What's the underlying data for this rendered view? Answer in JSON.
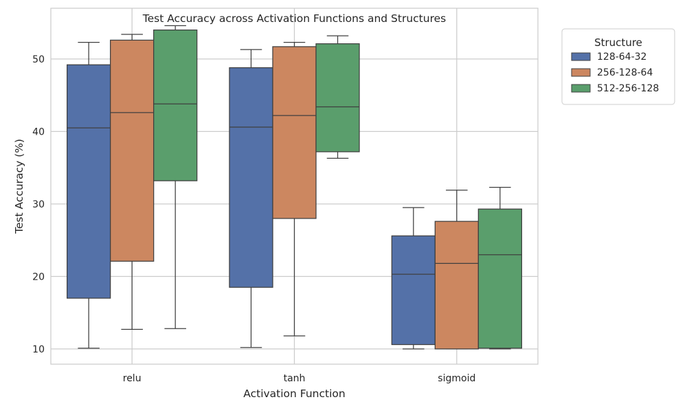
{
  "chart_data": {
    "type": "box",
    "title": "Test Accuracy across Activation Functions and Structures",
    "xlabel": "Activation Function",
    "ylabel": "Test Accuracy (%)",
    "categories": [
      "relu",
      "tanh",
      "sigmoid"
    ],
    "ylim": [
      7.9,
      57
    ],
    "yticks": [
      10,
      20,
      30,
      40,
      50
    ],
    "grid": true,
    "legend": {
      "title": "Structure",
      "placement": "outside-top-right"
    },
    "series": [
      {
        "name": "128-64-32",
        "color": "#5471a8",
        "boxes": [
          {
            "category": "relu",
            "min": 10.1,
            "q1": 17.0,
            "median": 40.5,
            "q3": 49.2,
            "max": 52.3
          },
          {
            "category": "tanh",
            "min": 10.2,
            "q1": 18.5,
            "median": 40.6,
            "q3": 48.8,
            "max": 51.3
          },
          {
            "category": "sigmoid",
            "min": 10.0,
            "q1": 10.6,
            "median": 20.3,
            "q3": 25.6,
            "max": 29.5
          }
        ]
      },
      {
        "name": "256-128-64",
        "color": "#cc8760",
        "boxes": [
          {
            "category": "relu",
            "min": 12.7,
            "q1": 22.1,
            "median": 42.6,
            "q3": 52.6,
            "max": 53.4
          },
          {
            "category": "tanh",
            "min": 11.8,
            "q1": 28.0,
            "median": 42.2,
            "q3": 51.7,
            "max": 52.3
          },
          {
            "category": "sigmoid",
            "min": 10.0,
            "q1": 10.0,
            "median": 21.8,
            "q3": 27.6,
            "max": 31.9
          }
        ]
      },
      {
        "name": "512-256-128",
        "color": "#5a9e6c",
        "boxes": [
          {
            "category": "relu",
            "min": 12.8,
            "q1": 33.2,
            "median": 43.8,
            "q3": 54.0,
            "max": 54.6
          },
          {
            "category": "tanh",
            "min": 36.3,
            "q1": 37.2,
            "median": 43.4,
            "q3": 52.1,
            "max": 53.2
          },
          {
            "category": "sigmoid",
            "min": 10.0,
            "q1": 10.1,
            "median": 23.0,
            "q3": 29.3,
            "max": 32.3
          }
        ]
      }
    ]
  }
}
